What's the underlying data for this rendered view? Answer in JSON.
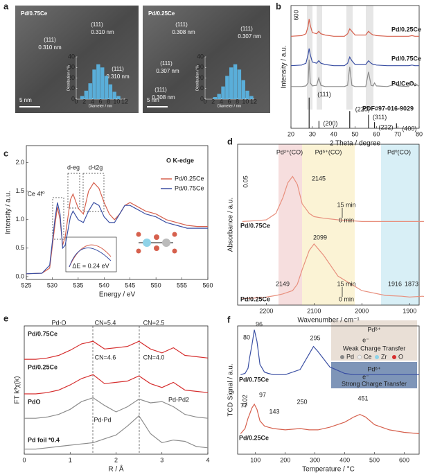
{
  "panel_labels": [
    "a",
    "b",
    "c",
    "d",
    "e",
    "f"
  ],
  "images": [
    {
      "title": "Pd/0.75Ce",
      "scale_bar": "5 nm",
      "annotations": [
        "(111)",
        "0.310 nm",
        "(111)",
        "0.310 nm",
        "(111)",
        "0.310 nm"
      ]
    },
    {
      "title": "Pd/0.25Ce",
      "scale_bar": "5 nm",
      "annotations": [
        "(111)",
        "0.308 nm",
        "(111)",
        "0.307 nm",
        "(111)",
        "0.307 nm",
        "(111)",
        "0.308 nm"
      ]
    }
  ],
  "chart_data": [
    {
      "type": "histogram",
      "xlabel": "Diameter / nm",
      "ylabel": "Distribution / %",
      "color": "#5bb8e8",
      "bins": [
        1,
        2,
        3,
        4,
        5,
        6,
        7,
        8,
        9,
        10,
        11
      ],
      "values": [
        3,
        8,
        15,
        28,
        33,
        30,
        22,
        14,
        7,
        3
      ],
      "xlim": [
        0,
        12
      ],
      "ylim": [
        0,
        40
      ],
      "xticks": [
        0,
        2,
        4,
        6,
        8,
        10,
        12
      ],
      "yticks": [
        0,
        10,
        20,
        30,
        40
      ]
    },
    {
      "type": "histogram",
      "xlabel": "Diameter / nm",
      "ylabel": "Distribution / %",
      "color": "#5bb8e8",
      "bins": [
        2,
        3,
        4,
        5,
        6,
        7,
        8,
        9,
        10,
        11,
        12
      ],
      "values": [
        2,
        5,
        12,
        22,
        30,
        33,
        28,
        18,
        8,
        3
      ],
      "xlim": [
        0,
        12
      ],
      "ylim": [
        0,
        40
      ],
      "xticks": [
        0,
        2,
        4,
        6,
        8,
        10,
        12
      ],
      "yticks": [
        0,
        10,
        20,
        30,
        40
      ]
    },
    {
      "type": "line",
      "xlabel": "2 Theta / degree",
      "ylabel": "Intensity / a.u.",
      "x": [
        20,
        25,
        27,
        28,
        28.5,
        29,
        30,
        32,
        33,
        34,
        36,
        40,
        45,
        46.5,
        47.5,
        48.5,
        50,
        55,
        56.3,
        57.5,
        58.5,
        59.1,
        60,
        65,
        69.4,
        70,
        75,
        76.7,
        78,
        79,
        80
      ],
      "series": [
        {
          "name": "Pd/0.25Ce",
          "color": "#d6604d",
          "values": [
            75,
            75.5,
            77,
            83,
            89,
            84,
            78,
            77,
            79,
            77,
            76,
            75,
            75,
            77,
            81,
            79,
            76,
            76,
            79,
            77,
            76,
            76,
            75.5,
            75,
            75,
            75,
            75,
            75.5,
            75,
            75,
            75
          ]
        },
        {
          "name": "Pd/0.75Ce",
          "color": "#3a4fa3",
          "values": [
            51,
            51.5,
            53,
            60,
            65,
            60,
            54,
            53,
            55,
            53,
            52,
            51,
            51,
            53,
            58,
            55,
            52,
            52,
            55,
            53,
            52,
            52,
            51.5,
            51,
            51,
            51,
            51,
            51.5,
            51,
            51,
            51
          ]
        },
        {
          "name": "Pd/CeO₂",
          "color": "#8c8c8c",
          "values": [
            34,
            34,
            34.5,
            37,
            56,
            37,
            34.5,
            35,
            41,
            35,
            34,
            34,
            34,
            35,
            50,
            35,
            34,
            34,
            46,
            35,
            34.5,
            37,
            34.5,
            34,
            36,
            34.5,
            34,
            38,
            34.5,
            35.5,
            34
          ]
        }
      ],
      "reference": {
        "name": "PDF#97-016-9029",
        "positions": [
          28.5,
          33.1,
          47.5,
          56.3,
          59.1,
          69.4
        ],
        "heights": [
          25,
          6,
          14,
          11,
          5,
          4
        ],
        "labels": [
          "(111)",
          "(200)",
          "(220)",
          "(311)",
          "(222)",
          "(400)"
        ]
      },
      "annotations": [
        "600"
      ],
      "xlim": [
        20,
        80
      ],
      "ylim": [
        0,
        100
      ],
      "xticks": [
        20,
        30,
        40,
        50,
        60,
        70,
        80
      ]
    },
    {
      "type": "line",
      "title": "O K-edge",
      "xlabel": "Energy / eV",
      "ylabel": "Intensity / a.u.",
      "x": [
        525,
        528,
        529.5,
        530.5,
        531,
        531.5,
        532,
        532.5,
        533.5,
        534,
        535,
        536,
        537,
        538,
        539,
        540,
        541,
        542,
        543,
        544,
        545,
        546,
        547,
        548,
        550,
        552,
        554,
        556,
        558,
        560
      ],
      "series": [
        {
          "name": "Pd/0.25Ce",
          "color": "#d6604d",
          "values": [
            0.05,
            0.06,
            0.15,
            0.9,
            1.22,
            1.0,
            0.55,
            0.7,
            1.35,
            1.45,
            1.2,
            1.1,
            1.5,
            1.65,
            1.55,
            1.3,
            1.1,
            1.0,
            1.1,
            1.25,
            1.3,
            1.25,
            1.2,
            1.15,
            1.1,
            1.0,
            0.95,
            0.9,
            0.88,
            0.88
          ]
        },
        {
          "name": "Pd/0.75Ce",
          "color": "#3a4fa3",
          "values": [
            0.05,
            0.06,
            0.2,
            1.0,
            1.3,
            1.1,
            0.5,
            0.55,
            1.05,
            1.15,
            1.0,
            0.95,
            1.15,
            1.3,
            1.25,
            1.05,
            0.95,
            0.95,
            1.1,
            1.25,
            1.25,
            1.2,
            1.15,
            1.1,
            1.05,
            0.95,
            0.9,
            0.85,
            0.85,
            0.85
          ]
        }
      ],
      "annotations": [
        "Ce 4f⁰",
        "d-eg",
        "d-t2g",
        "ΔE = 0.24 eV"
      ],
      "xlim": [
        525,
        560
      ],
      "ylim": [
        -0.05,
        2.3
      ],
      "xticks": [
        525,
        530,
        535,
        540,
        545,
        550,
        555,
        560
      ],
      "yticks": [
        {
          "value": 0,
          "label": "0.0"
        },
        0.5,
        {
          "value": 1,
          "label": "1.0"
        },
        1.5,
        {
          "value": 2,
          "label": "2.0"
        }
      ]
    },
    {
      "type": "line",
      "xlabel": "Wavenumber / cm⁻¹",
      "ylabel": "Absorbance / a.u.",
      "x": [
        2250,
        2220,
        2200,
        2180,
        2165,
        2155,
        2145,
        2135,
        2125,
        2110,
        2100,
        2080,
        2050,
        2000,
        1950,
        1916,
        1900,
        1873,
        1850
      ],
      "series": [
        {
          "name": "Pd/0.75Ce",
          "color": "#e8907e",
          "values": [
            52,
            52.5,
            53,
            57,
            67,
            76,
            80,
            75,
            63,
            57,
            55,
            54,
            53,
            52,
            52,
            52,
            52,
            52,
            52
          ]
        },
        {
          "name": "Pd/0.25Ce",
          "color": "#e8907e",
          "values": [
            4,
            4.5,
            5,
            6,
            7,
            8,
            9,
            13,
            22,
            34,
            38,
            31,
            18,
            9,
            6,
            5.5,
            5,
            5.5,
            4.5
          ]
        }
      ],
      "annotations": [
        "Pd²⁺(CO)",
        "Pdᵟ⁺(CO)",
        "Pd⁰(CO)",
        "0.05",
        "2145",
        "15 min",
        "0 min",
        "2099",
        "2149",
        "15 min",
        "0 min",
        "1916",
        "1873"
      ],
      "xlim": [
        2260,
        1880
      ],
      "ylim": [
        0,
        100
      ],
      "xticks": [
        2200,
        2100,
        2000,
        1900
      ]
    },
    {
      "type": "line",
      "xlabel": "R / Å",
      "ylabel": "FT k³χ(k)",
      "x": [
        0,
        0.25,
        0.5,
        0.75,
        1,
        1.25,
        1.5,
        1.75,
        2,
        2.25,
        2.5,
        2.75,
        3,
        3.25,
        3.5,
        3.75,
        4
      ],
      "series": [
        {
          "name": "Pd/0.75Ce",
          "color": "#d62f2f",
          "values": [
            74,
            74,
            75,
            77,
            81,
            86,
            88,
            82,
            83,
            84,
            88,
            82,
            79,
            83,
            77,
            76,
            75
          ]
        },
        {
          "name": "Pd/0.25Ce",
          "color": "#d62f2f",
          "values": [
            47,
            47,
            48,
            50,
            54,
            59,
            62,
            55,
            56,
            57,
            61,
            55,
            52,
            56,
            50,
            49,
            48
          ]
        },
        {
          "name": "PdO",
          "color": "#8c8c8c",
          "values": [
            28,
            28,
            29,
            31,
            35,
            41,
            44,
            38,
            33,
            37,
            43,
            40,
            41,
            37,
            31,
            29,
            28
          ]
        },
        {
          "name": "Pd foil *0.4",
          "color": "#8c8c8c",
          "values": [
            4,
            4,
            5,
            6,
            7,
            8,
            9,
            12,
            15,
            22,
            30,
            16,
            9,
            11,
            10,
            6,
            5
          ]
        }
      ],
      "annotations": [
        "Pd-O",
        "CN=5.4",
        "CN=2.5",
        "CN=4.6",
        "CN=4.0",
        "Pd-Pd2",
        "Pd-Pd"
      ],
      "xlim": [
        0,
        4
      ],
      "ylim": [
        0,
        100
      ],
      "xticks": [
        0,
        1,
        2,
        3,
        4
      ]
    },
    {
      "type": "line",
      "xlabel": "Temperature / °C",
      "ylabel": "TCD Signal / a.u.",
      "x": [
        50,
        65,
        75,
        80,
        88,
        96,
        105,
        115,
        130,
        143,
        160,
        200,
        250,
        280,
        295,
        310,
        350,
        400,
        430,
        451,
        470,
        500,
        550,
        600,
        650
      ],
      "series": [
        {
          "name": "Pd/0.75Ce",
          "color": "#3a4fa3",
          "values": [
            62,
            63,
            67,
            75,
            85,
            97,
            88,
            70,
            64,
            63,
            62,
            62,
            66,
            78,
            84,
            80,
            68,
            63,
            62,
            62,
            62,
            62,
            62,
            62,
            62
          ]
        },
        {
          "name": "Pd/0.25Ce",
          "color": "#d6604d",
          "values": [
            16,
            20,
            28,
            31,
            36,
            39,
            35,
            26,
            22,
            21,
            20,
            19,
            20,
            19,
            19,
            19,
            21,
            25,
            29,
            31,
            29,
            23,
            19,
            17,
            16
          ]
        }
      ],
      "annotations": [
        "96",
        "80",
        "295",
        "0.02",
        "77",
        "97",
        "143",
        "250",
        "451",
        "Pdᵟ⁺",
        "e⁻",
        "Weak Charge Transfer",
        "Pd",
        "Ce",
        "Zr",
        "O",
        "Pdᵟ⁺",
        "e⁻",
        "Strong Charge Transfer"
      ],
      "xlim": [
        40,
        650
      ],
      "ylim": [
        0,
        100
      ],
      "xticks": [
        100,
        200,
        300,
        400,
        500,
        600
      ]
    }
  ]
}
